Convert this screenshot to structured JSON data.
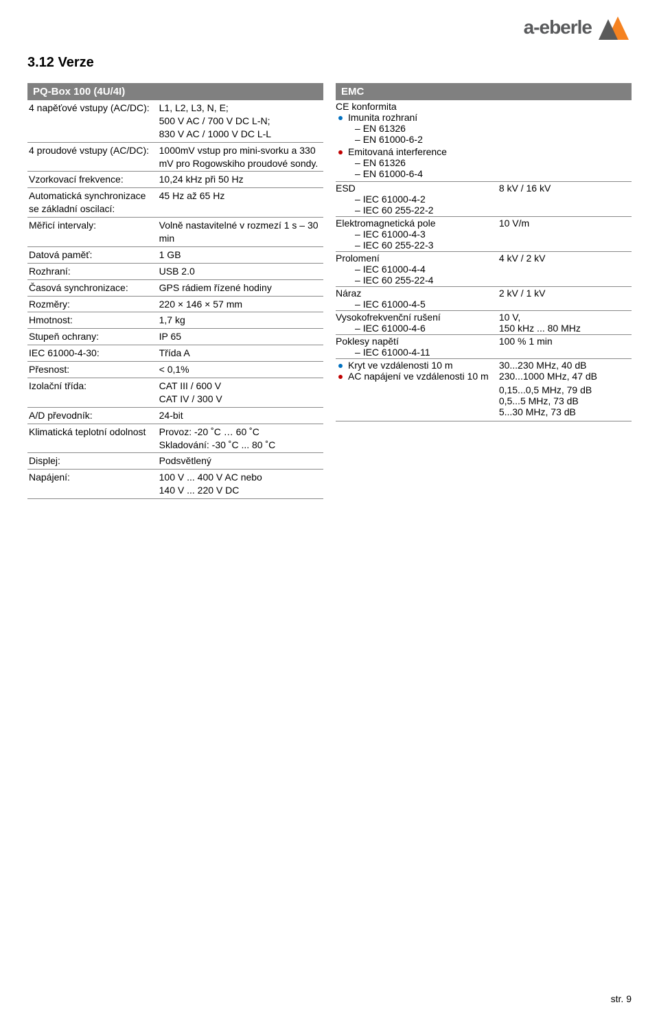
{
  "logo": {
    "text": "a-eberle",
    "color_text": "#58595b",
    "color_tri1": "#5a5a5a",
    "color_tri2": "#f58220"
  },
  "section_title": "3.12 Verze",
  "panelA": {
    "title": "PQ-Box 100 (4U/4I)",
    "bg": "#808080",
    "rows": [
      {
        "label": "4 napěťové vstupy (AC/DC):",
        "value": "L1, L2, L3, N, E;\n500 V AC / 700 V DC L-N;\n830 V AC / 1000 V DC L-L"
      },
      {
        "label": "4 proudové vstupy (AC/DC):",
        "value": "1000mV vstup pro mini-svorku a 330 mV pro Rogowskiho proudové sondy."
      },
      {
        "label": "Vzorkovací frekvence:",
        "value": "10,24 kHz při 50 Hz"
      },
      {
        "label": "Automatická synchronizace se základní oscilací:",
        "value": "45 Hz až 65 Hz"
      },
      {
        "label": "Měřicí intervaly:",
        "value": "Volně nastavitelné v rozmezí 1 s – 30 min"
      },
      {
        "label": "Datová paměť:",
        "value": "1 GB"
      },
      {
        "label": "Rozhraní:",
        "value": "USB 2.0"
      },
      {
        "label": "Časová synchronizace:",
        "value": "GPS rádiem řízené hodiny"
      },
      {
        "label": "Rozměry:",
        "value": "220 × 146 × 57 mm"
      },
      {
        "label": "Hmotnost:",
        "value": "1,7 kg"
      },
      {
        "label": "Stupeň ochrany:",
        "value": "IP 65"
      },
      {
        "label": "IEC 61000-4-30:",
        "value": "Třída A"
      },
      {
        "label": "Přesnost:",
        "value": "< 0,1%"
      },
      {
        "label": "Izolační třída:",
        "value": "CAT III / 600 V\nCAT IV / 300 V"
      },
      {
        "label": "A/D převodník:",
        "value": "24-bit"
      },
      {
        "label": "Klimatická teplotní odolnost",
        "value": "Provoz: -20 ˚C … 60 ˚C\nSkladování: -30 ˚C ... 80 ˚C"
      },
      {
        "label": "Displej:",
        "value": "Podsvětlený"
      },
      {
        "label": "Napájení:",
        "value": "100 V ... 400 V AC nebo\n140 V ... 220 V DC"
      }
    ]
  },
  "panelB": {
    "title": "EMC",
    "bg": "#808080",
    "bullet_colors": {
      "blue": "#0070c0",
      "red": "#c00000"
    },
    "conformity": {
      "title": "CE konformita",
      "items": [
        {
          "color": "blue",
          "label": "Imunita rozhraní",
          "subs": [
            "EN 61326",
            "EN 61000-6-2"
          ]
        },
        {
          "color": "red",
          "label": "Emitovaná interference",
          "subs": [
            "EN 61326",
            "EN 61000-6-4"
          ]
        }
      ]
    },
    "rows": [
      {
        "left_title": "ESD",
        "left_subs": [
          "IEC 61000-4-2",
          "IEC 60 255-22-2"
        ],
        "right": "8 kV / 16 kV"
      },
      {
        "left_title": "Elektromagnetická pole",
        "left_subs": [
          "IEC 61000-4-3",
          "IEC 60 255-22-3"
        ],
        "right": "10 V/m"
      },
      {
        "left_title": "Prolomení",
        "left_subs": [
          "IEC 61000-4-4",
          "IEC 60 255-22-4"
        ],
        "right": "4 kV / 2 kV"
      },
      {
        "left_title": "Náraz",
        "left_subs": [
          "IEC 61000-4-5"
        ],
        "right": "2 kV / 1 kV"
      },
      {
        "left_title": "Vysokofrekvenční rušení",
        "left_subs": [
          "IEC 61000-4-6"
        ],
        "right": "10 V,\n150 kHz ... 80 MHz"
      },
      {
        "left_title": "Poklesy napětí",
        "left_subs": [
          "IEC 61000-4-11"
        ],
        "right": "100 % 1 min"
      }
    ],
    "tail": {
      "items": [
        {
          "color": "blue",
          "label": "Kryt ve vzdálenosti 10 m",
          "right": "30...230 MHz, 40 dB\n230...1000 MHz, 47 dB"
        },
        {
          "color": "red",
          "label": "AC napájení ve vzdálenosti 10 m",
          "right": "0,15...0,5 MHz, 79 dB\n0,5...5 MHz, 73 dB\n5...30 MHz, 73 dB"
        }
      ]
    }
  },
  "footer": "str. 9"
}
